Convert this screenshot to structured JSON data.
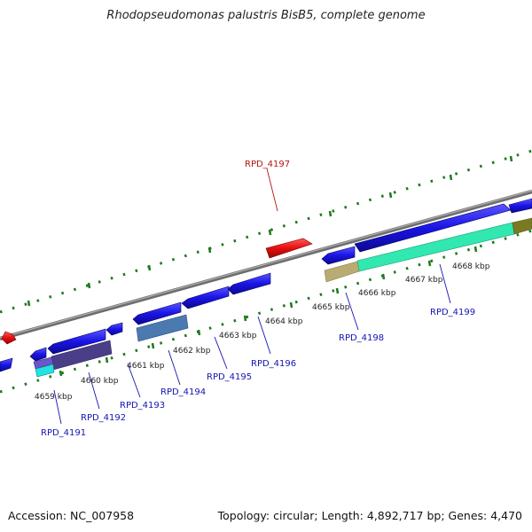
{
  "title": "Rhodopseudomonas palustris BisB5, complete genome",
  "accession": "Accession: NC_007958",
  "topology": "Topology: circular; Length: 4,892,717 bp; Genes: 4,470",
  "scale_labels": [
    "4659 kbp",
    "4660 kbp",
    "4661 kbp",
    "4662 kbp",
    "4663 kbp",
    "4664 kbp",
    "4665 kbp",
    "4666 kbp",
    "4667 kbp",
    "4668 kbp"
  ],
  "gene_labels": [
    "RPD_4191",
    "RPD_4192",
    "RPD_4193",
    "RPD_4194",
    "RPD_4195",
    "RPD_4196",
    "RPD_4197",
    "RPD_4198",
    "RPD_4199"
  ],
  "colors": {
    "gene_blue": "#1a14e6",
    "gene_red": "#e60e0e",
    "label_blue": "#1414b4",
    "label_red": "#b41414",
    "backbone": "#7f7f7f",
    "tick_green": "#1e7a1e",
    "rna_teal": "#30e8b0",
    "rna_khaki": "#b8ac72",
    "rna_olive": "#7a7a22",
    "rna_steel": "#4a7ab0",
    "rna_dark": "#4a3e88",
    "rna_cyan": "#22e2e2",
    "rna_violet": "#6a58c8"
  }
}
